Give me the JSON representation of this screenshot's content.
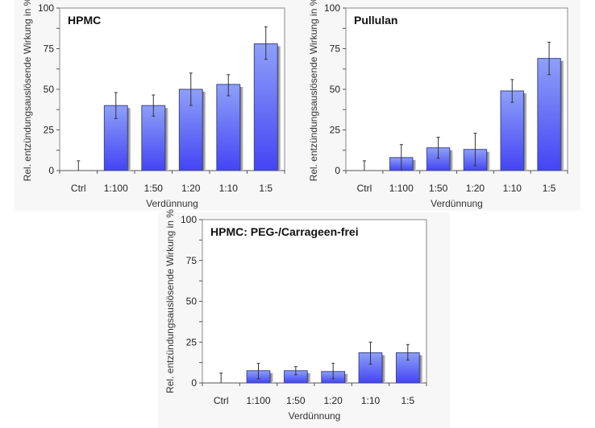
{
  "chart_data": [
    {
      "type": "bar",
      "title": "HPMC",
      "xlabel": "Verdünnung",
      "ylabel": "Rel. entzündungsauslösende Wirkung in %",
      "ylim": [
        0,
        100
      ],
      "yticks": [
        0,
        25,
        50,
        75,
        100
      ],
      "categories": [
        "Ctrl",
        "1:100",
        "1:50",
        "1:20",
        "1:10",
        "1:5"
      ],
      "values": [
        0,
        40,
        40,
        50,
        53,
        78
      ],
      "error_low": [
        0,
        32,
        33.5,
        40,
        46,
        68.5
      ],
      "error_high": [
        6,
        48,
        46.5,
        60,
        59,
        88.5
      ],
      "grid": false,
      "colors": {
        "bar_top": "#8ea0f8",
        "bar_bottom": "#4444f4",
        "bar_edge": "#3b4690",
        "shadow": "#9a9a9a"
      }
    },
    {
      "type": "bar",
      "title": "Pullulan",
      "xlabel": "Verdünnung",
      "ylabel": "Rel. entzündungsauslösende Wirkung in %",
      "ylim": [
        0,
        100
      ],
      "yticks": [
        0,
        25,
        50,
        75,
        100
      ],
      "categories": [
        "Ctrl",
        "1:100",
        "1:50",
        "1:20",
        "1:10",
        "1:5"
      ],
      "values": [
        0,
        8,
        14,
        13,
        49,
        69
      ],
      "error_low": [
        0,
        0,
        7.5,
        3,
        42,
        59
      ],
      "error_high": [
        6,
        16,
        20.5,
        23,
        56,
        79
      ],
      "grid": false,
      "colors": {
        "bar_top": "#8ea0f8",
        "bar_bottom": "#4444f4",
        "bar_edge": "#3b4690",
        "shadow": "#9a9a9a"
      }
    },
    {
      "type": "bar",
      "title": "HPMC: PEG-/Carrageen-frei",
      "xlabel": "Verdünnung",
      "ylabel": "Rel. entzündungsauslösende Wirkung in %",
      "ylim": [
        0,
        100
      ],
      "yticks": [
        0,
        25,
        50,
        75,
        100
      ],
      "categories": [
        "Ctrl",
        "1:100",
        "1:50",
        "1:20",
        "1:10",
        "1:5"
      ],
      "values": [
        0,
        7.5,
        7.5,
        7,
        18.5,
        18.5
      ],
      "error_low": [
        0,
        2.5,
        5,
        2.5,
        11.5,
        14
      ],
      "error_high": [
        6,
        12,
        10,
        12,
        25,
        23.5
      ],
      "grid": false,
      "colors": {
        "bar_top": "#8ea0f8",
        "bar_bottom": "#4444f4",
        "bar_edge": "#3b4690",
        "shadow": "#9a9a9a"
      }
    }
  ]
}
